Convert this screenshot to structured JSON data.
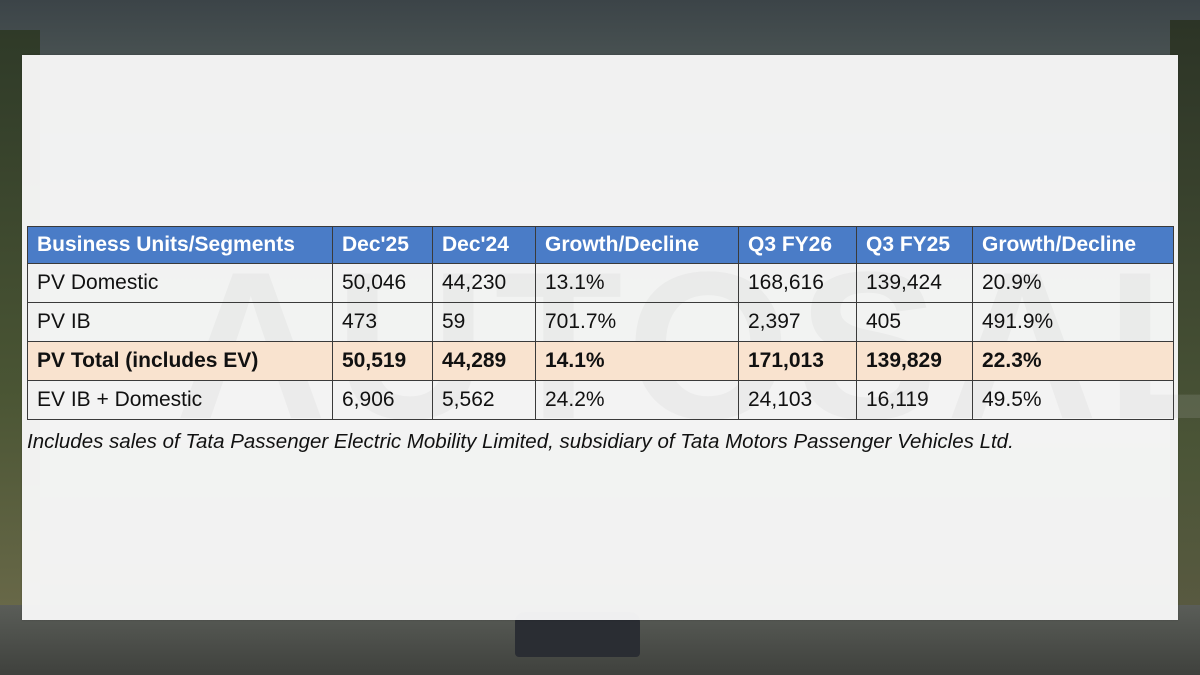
{
  "table": {
    "headers": [
      "Business Units/Segments",
      "Dec'25",
      "Dec'24",
      "Growth/Decline",
      "Q3 FY26",
      "Q3 FY25",
      "Growth/Decline"
    ],
    "rows": [
      [
        "PV Domestic",
        "50,046",
        "44,230",
        "13.1%",
        "168,616",
        "139,424",
        "20.9%"
      ],
      [
        "PV IB",
        "473",
        "59",
        "701.7%",
        "2,397",
        "405",
        "491.9%"
      ],
      [
        "PV Total (includes EV)",
        "50,519",
        "44,289",
        "14.1%",
        "171,013",
        "139,829",
        "22.3%"
      ],
      [
        "EV IB + Domestic",
        "6,906",
        "5,562",
        "24.2%",
        "24,103",
        "16,119",
        "49.5%"
      ]
    ],
    "highlight_row_color": "#f9e3cf",
    "header_color": "#4a7cc7"
  },
  "footnote": "Includes sales of Tata Passenger Electric Mobility Limited, subsidiary of Tata Motors Passenger Vehicles Ltd.",
  "watermark": "AUTOSALES"
}
